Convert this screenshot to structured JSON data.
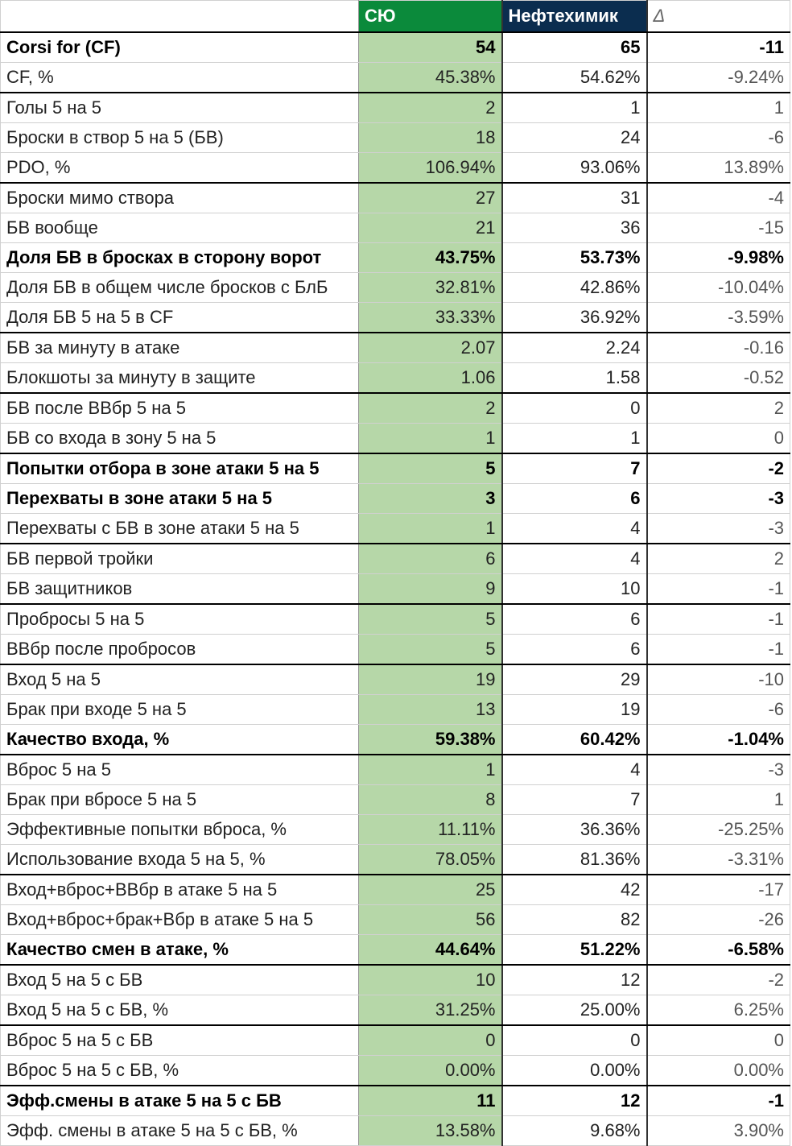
{
  "table": {
    "header": [
      "СЮ",
      "Нефтехимик",
      "Δ"
    ],
    "rows": [
      [
        "Corsi for (CF)",
        "54",
        "65",
        "-11"
      ],
      [
        "CF, %",
        "45.38%",
        "54.62%",
        "-9.24%"
      ],
      [
        "Голы 5 на 5",
        "2",
        "1",
        "1"
      ],
      [
        "Броски в створ 5 на 5 (БВ)",
        "18",
        "24",
        "-6"
      ],
      [
        "PDO, %",
        "106.94%",
        "93.06%",
        "13.89%"
      ],
      [
        "Броски мимо створа",
        "27",
        "31",
        "-4"
      ],
      [
        "БВ вообще",
        "21",
        "36",
        "-15"
      ],
      [
        "Доля БВ в бросках в сторону ворот",
        "43.75%",
        "53.73%",
        "-9.98%"
      ],
      [
        "Доля БВ в общем числе бросков с БлБ",
        "32.81%",
        "42.86%",
        "-10.04%"
      ],
      [
        "Доля БВ 5 на 5 в CF",
        "33.33%",
        "36.92%",
        "-3.59%"
      ],
      [
        "БВ за минуту в атаке",
        "2.07",
        "2.24",
        "-0.16"
      ],
      [
        "Блокшоты за минуту в защите",
        "1.06",
        "1.58",
        "-0.52"
      ],
      [
        "БВ после ВВбр 5 на 5",
        "2",
        "0",
        "2"
      ],
      [
        "БВ со входа в зону 5 на 5",
        "1",
        "1",
        "0"
      ],
      [
        "Попытки отбора в зоне атаки 5 на 5",
        "5",
        "7",
        "-2"
      ],
      [
        "Перехваты в зоне атаки 5 на 5",
        "3",
        "6",
        "-3"
      ],
      [
        "Перехваты с БВ в зоне атаки 5 на 5",
        "1",
        "4",
        "-3"
      ],
      [
        "БВ первой тройки",
        "6",
        "4",
        "2"
      ],
      [
        "БВ защитников",
        "9",
        "10",
        "-1"
      ],
      [
        "Пробросы 5 на 5",
        "5",
        "6",
        "-1"
      ],
      [
        "ВВбр после пробросов",
        "5",
        "6",
        "-1"
      ],
      [
        "Вход 5 на 5",
        "19",
        "29",
        "-10"
      ],
      [
        "Брак при входе 5 на 5",
        "13",
        "19",
        "-6"
      ],
      [
        "Качество входа, %",
        "59.38%",
        "60.42%",
        "-1.04%"
      ],
      [
        "Вброс 5 на 5",
        "1",
        "4",
        "-3"
      ],
      [
        "Брак при вбросе 5 на 5",
        "8",
        "7",
        "1"
      ],
      [
        "Эффективные попытки вброса, %",
        "11.11%",
        "36.36%",
        "-25.25%"
      ],
      [
        "Использование входа 5 на 5, %",
        "78.05%",
        "81.36%",
        "-3.31%"
      ],
      [
        "Вход+вброс+ВВбр в атаке 5 на 5",
        "25",
        "42",
        "-17"
      ],
      [
        "Вход+вброс+брак+Вбр в атаке 5 на 5",
        "56",
        "82",
        "-26"
      ],
      [
        "Качество смен в атаке, %",
        "44.64%",
        "51.22%",
        "-6.58%"
      ],
      [
        "Вход 5 на 5 с БВ",
        "10",
        "12",
        "-2"
      ],
      [
        "Вход 5 на 5 с БВ, %",
        "31.25%",
        "25.00%",
        "6.25%"
      ],
      [
        "Вброс 5 на 5 с БВ",
        "0",
        "0",
        "0"
      ],
      [
        "Вброс 5 на 5 с БВ, %",
        "0.00%",
        "0.00%",
        "0.00%"
      ],
      [
        "Эфф.смены в атаке 5 на 5 с БВ",
        "11",
        "12",
        "-1"
      ],
      [
        "Эфф. смены в атаке 5 на 5 с БВ, %",
        "13.58%",
        "9.68%",
        "3.90%"
      ]
    ]
  }
}
